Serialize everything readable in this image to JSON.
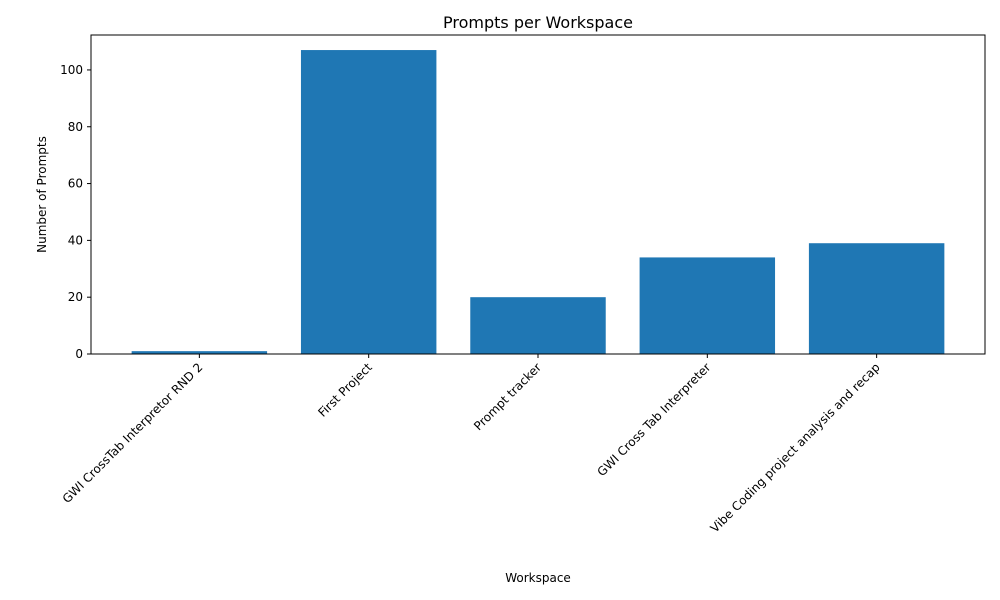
{
  "chart_data": {
    "type": "bar",
    "title": "Prompts per Workspace",
    "xlabel": "Workspace",
    "ylabel": "Number of Prompts",
    "categories": [
      "GWI CrossTab  Interpretor RND 2",
      "First Project",
      "Prompt tracker",
      "GWI Cross Tab Interpreter",
      "Vibe Coding project analysis and recap"
    ],
    "values": [
      1,
      107,
      20,
      34,
      39
    ],
    "ylim": [
      0,
      112.3
    ],
    "yticks": [
      0,
      20,
      40,
      60,
      80,
      100
    ],
    "grid": false,
    "legend": "none",
    "bar_color": "#1f77b4",
    "xtick_rotation_deg": 45
  }
}
